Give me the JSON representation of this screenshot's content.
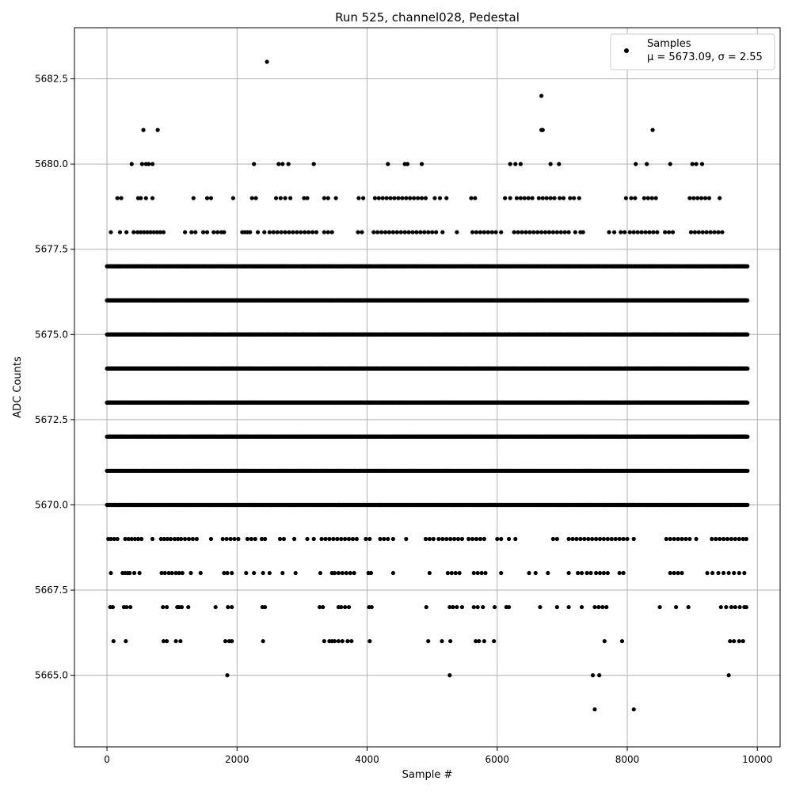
{
  "chart_data": {
    "type": "scatter",
    "title": "Run 525, channel028, Pedestal",
    "xlabel": "Sample #",
    "ylabel": "ADC Counts",
    "xlim": [
      -500,
      10350
    ],
    "ylim": [
      5662.9,
      5684.0
    ],
    "xticks": [
      0,
      2000,
      4000,
      6000,
      8000,
      10000
    ],
    "xtick_labels": [
      "0",
      "2000",
      "4000",
      "6000",
      "8000",
      "10000"
    ],
    "yticks": [
      5665.0,
      5667.5,
      5670.0,
      5672.5,
      5675.0,
      5677.5,
      5680.0,
      5682.5
    ],
    "ytick_labels": [
      "5665.0",
      "5667.5",
      "5670.0",
      "5672.5",
      "5675.0",
      "5677.5",
      "5680.0",
      "5682.5"
    ],
    "grid": true,
    "legend_position": "top-right",
    "series": [
      {
        "name": "Samples",
        "annotation": "μ = 5673.09, σ = 2.55",
        "color": "#000000",
        "marker": "dot",
        "n_samples": 9850,
        "value_distribution": [
          {
            "y": 5664,
            "x": [
              7500,
              8100
            ]
          },
          {
            "y": 5665,
            "x": [
              1850,
              5270,
              7470,
              7570,
              9560
            ]
          },
          {
            "y": 5666,
            "x": [
              100,
              290,
              870,
              920,
              1060,
              1130,
              1820,
              1880,
              1920,
              2400,
              3340,
              3420,
              3460,
              3500,
              3560,
              3620,
              3700,
              3760,
              4040,
              4940,
              5150,
              5280,
              5670,
              5720,
              5800,
              5950,
              7650,
              7920,
              9580,
              9640,
              9720,
              9780
            ]
          },
          {
            "y": 5667,
            "x": [
              50,
              90,
              260,
              300,
              360,
              860,
              920,
              1080,
              1110,
              1150,
              1250,
              1670,
              1860,
              1920,
              2390,
              2430,
              3270,
              3320,
              3560,
              3600,
              3660,
              3720,
              4030,
              4070,
              4910,
              5270,
              5320,
              5380,
              5460,
              5640,
              5700,
              5780,
              5960,
              6140,
              6180,
              6660,
              6920,
              7100,
              7300,
              7500,
              7560,
              7620,
              7680,
              8500,
              8750,
              8940,
              9440,
              9520,
              9600,
              9660,
              9730,
              9800,
              9830
            ]
          },
          {
            "y": 5668,
            "x": [
              60,
              500,
              240,
              280,
              320,
              350,
              420,
              840,
              890,
              950,
              1000,
              1060,
              1110,
              1160,
              1290,
              1440,
              1800,
              1850,
              1920,
              2140,
              2260,
              2400,
              2500,
              2700,
              2900,
              3280,
              3460,
              3500,
              3560,
              3620,
              3680,
              3740,
              3800,
              4020,
              4060,
              4400,
              4960,
              5240,
              5300,
              5360,
              5420,
              5640,
              5700,
              5760,
              5820,
              6060,
              6490,
              6590,
              6780,
              7100,
              7240,
              7300,
              7380,
              7440,
              7520,
              7580,
              7640,
              7700,
              7880,
              7940,
              8660,
              8720,
              8780,
              8840,
              9230,
              9310,
              9400,
              9480,
              9560,
              9640,
              9720,
              9800
            ]
          },
          {
            "y": 5669,
            "x": [
              20,
              60,
              110,
              160,
              280,
              330,
              380,
              430,
              480,
              530,
              700,
              830,
              880,
              930,
              980,
              1040,
              1090,
              1140,
              1200,
              1260,
              1320,
              1380,
              1600,
              1780,
              1840,
              1900,
              1960,
              2020,
              2160,
              2220,
              2280,
              2380,
              2430,
              2660,
              2720,
              2880,
              3080,
              3180,
              3300,
              3360,
              3420,
              3480,
              3540,
              3600,
              3660,
              3720,
              3780,
              3840,
              3980,
              4040,
              4200,
              4260,
              4320,
              4400,
              4600,
              4900,
              4960,
              5020,
              5100,
              5160,
              5220,
              5280,
              5340,
              5400,
              5460,
              5560,
              5620,
              5680,
              5740,
              5800,
              6000,
              6060,
              6180,
              6280,
              6860,
              6920,
              7100,
              7160,
              7220,
              7280,
              7340,
              7400,
              7460,
              7520,
              7580,
              7640,
              7700,
              7760,
              7820,
              7880,
              7940,
              8000,
              8100,
              8600,
              8660,
              8720,
              8780,
              8840,
              8900,
              8960,
              9060,
              9300,
              9360,
              9420,
              9480,
              9540,
              9600,
              9660,
              9720,
              9780,
              9830
            ]
          },
          {
            "y": 5670,
            "x_range": [
              0,
              9850
            ],
            "density": "dense"
          },
          {
            "y": 5671,
            "x_range": [
              0,
              9850
            ],
            "density": "dense"
          },
          {
            "y": 5672,
            "x_range": [
              0,
              9850
            ],
            "density": "very dense"
          },
          {
            "y": 5673,
            "x_range": [
              0,
              9850
            ],
            "density": "very dense"
          },
          {
            "y": 5674,
            "x_range": [
              0,
              9850
            ],
            "density": "very dense"
          },
          {
            "y": 5675,
            "x_range": [
              0,
              9850
            ],
            "density": "dense"
          },
          {
            "y": 5676,
            "x_range": [
              0,
              9850
            ],
            "density": "dense"
          },
          {
            "y": 5677,
            "x_range": [
              0,
              9850
            ],
            "density": "moderate"
          },
          {
            "y": 5678,
            "x": [
              60,
              200,
              300,
              410,
              470,
              520,
              570,
              620,
              670,
              720,
              770,
              820,
              870,
              1200,
              1300,
              1360,
              1480,
              1540,
              1640,
              1700,
              1760,
              1800,
              2080,
              2120,
              2160,
              2200,
              2320,
              2420,
              2500,
              2560,
              2620,
              2680,
              2740,
              2800,
              2860,
              2920,
              2980,
              3040,
              3100,
              3160,
              3220,
              3340,
              3400,
              3460,
              3860,
              3920,
              4100,
              4160,
              4220,
              4280,
              4340,
              4400,
              4460,
              4520,
              4580,
              4640,
              4700,
              4760,
              4820,
              4880,
              4940,
              5000,
              5060,
              5160,
              5380,
              5620,
              5680,
              5740,
              5800,
              5860,
              5920,
              5980,
              6060,
              6260,
              6320,
              6380,
              6440,
              6500,
              6560,
              6620,
              6680,
              6740,
              6800,
              6860,
              6920,
              6980,
              7040,
              7100,
              7200,
              7280,
              7320,
              7720,
              7800,
              7900,
              7960,
              8040,
              8100,
              8160,
              8220,
              8280,
              8340,
              8400,
              8460,
              8580,
              8640,
              8700,
              8980,
              9040,
              9100,
              9160,
              9220,
              9280,
              9340,
              9400,
              9460
            ]
          },
          {
            "y": 5679,
            "x": [
              160,
              220,
              480,
              520,
              600,
              700,
              1330,
              1540,
              1600,
              1940,
              2230,
              2290,
              2600,
              2670,
              2740,
              2820,
              3030,
              3080,
              3340,
              3400,
              3520,
              3870,
              3940,
              4120,
              4180,
              4240,
              4300,
              4360,
              4420,
              4480,
              4540,
              4600,
              4660,
              4720,
              4780,
              4840,
              4900,
              5040,
              5120,
              5220,
              5600,
              5660,
              6120,
              6200,
              6300,
              6360,
              6420,
              6480,
              6540,
              6640,
              6700,
              6760,
              6820,
              6880,
              6960,
              7020,
              7120,
              7180,
              7260,
              7980,
              8060,
              8120,
              8260,
              8320,
              8380,
              8440,
              8960,
              9020,
              9080,
              9140,
              9200,
              9260,
              9420
            ]
          },
          {
            "y": 5680,
            "x": [
              380,
              540,
              600,
              640,
              700,
              2260,
              2640,
              2700,
              2790,
              3180,
              4320,
              4580,
              4620,
              4840,
              6200,
              6280,
              6360,
              6820,
              6950,
              8130,
              8300,
              8660,
              9000,
              9060,
              9150
            ]
          },
          {
            "y": 5681,
            "x": [
              560,
              780,
              6680,
              6700,
              8390
            ]
          },
          {
            "y": 5682,
            "x": [
              6680
            ]
          },
          {
            "y": 5683,
            "x": [
              2460
            ]
          }
        ]
      }
    ]
  }
}
